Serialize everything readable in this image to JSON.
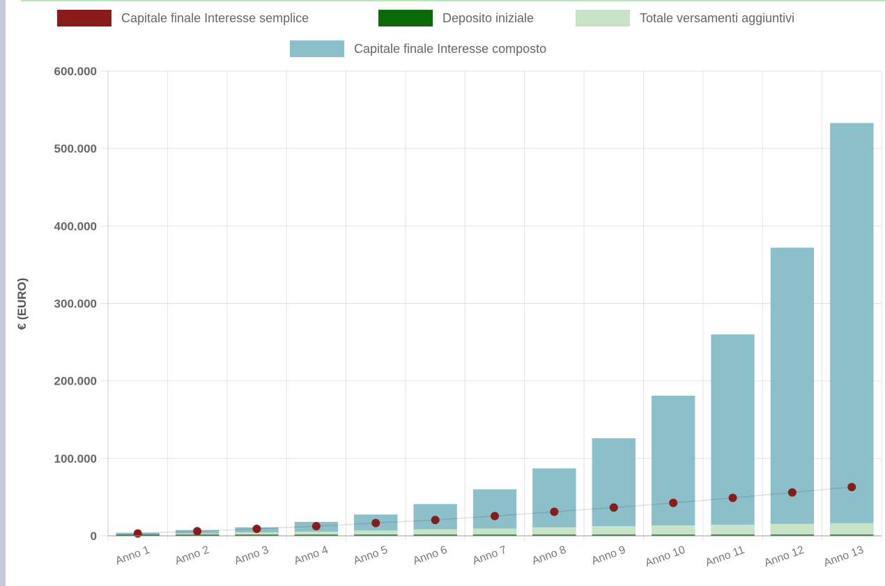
{
  "chart_data": {
    "type": "bar",
    "title": "",
    "xlabel": "",
    "ylabel": "€ (EURO)",
    "ylim": [
      0,
      600000
    ],
    "yticks": [
      0,
      100000,
      200000,
      300000,
      400000,
      500000,
      600000
    ],
    "ytick_labels": [
      "0",
      "100.000",
      "200.000",
      "300.000",
      "400.000",
      "500.000",
      "600.000"
    ],
    "categories": [
      "Anno 1",
      "Anno 2",
      "Anno 3",
      "Anno 4",
      "Anno 5",
      "Anno 6",
      "Anno 7",
      "Anno 8",
      "Anno 9",
      "Anno 10",
      "Anno 11",
      "Anno 12",
      "Anno 13"
    ],
    "grid": true,
    "legend_position": "top",
    "series": [
      {
        "name": "Capitale finale Interesse semplice",
        "kind": "scatter-line",
        "color": "#8b1a1a",
        "values": [
          3000,
          6000,
          9000,
          12500,
          16500,
          20500,
          25500,
          31000,
          36500,
          42500,
          49000,
          56000,
          63000
        ]
      },
      {
        "name": "Deposito iniziale",
        "kind": "bar",
        "color": "#0a6b0a",
        "values": [
          1500,
          1500,
          1500,
          1500,
          1500,
          1500,
          1500,
          1500,
          1500,
          1500,
          1500,
          1500,
          1500
        ]
      },
      {
        "name": "Totale versamenti aggiuntivi",
        "kind": "bar",
        "color": "#c8e3c8",
        "values": [
          1500,
          3000,
          4500,
          5500,
          7000,
          8500,
          9500,
          11000,
          12500,
          13500,
          14500,
          15500,
          16500
        ]
      },
      {
        "name": "Capitale finale Interesse composto",
        "kind": "bar",
        "color": "#8bbfc9",
        "values": [
          4000,
          7500,
          11000,
          18000,
          27500,
          41000,
          60000,
          87000,
          126000,
          181000,
          260000,
          372000,
          533000
        ]
      }
    ]
  }
}
